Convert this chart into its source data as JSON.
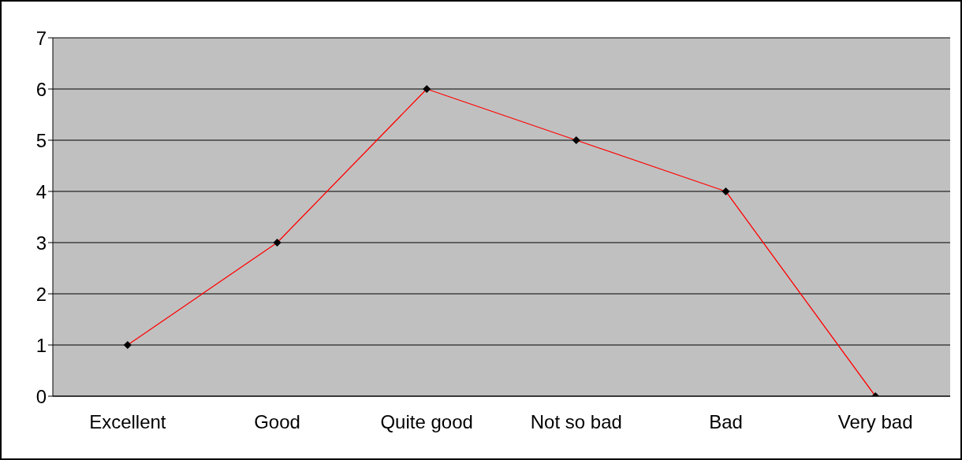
{
  "chart_data": {
    "type": "line",
    "categories": [
      "Excellent",
      "Good",
      "Quite good",
      "Not so bad",
      "Bad",
      "Very bad"
    ],
    "series": [
      {
        "color": "#ff0000",
        "values": [
          1,
          3,
          6,
          5,
          4,
          0
        ]
      }
    ],
    "ylim": [
      0,
      7
    ],
    "yticks": [
      0,
      1,
      2,
      3,
      4,
      5,
      6,
      7
    ],
    "grid": "y",
    "legend": false,
    "marker": "diamond",
    "line_style": "solid"
  }
}
